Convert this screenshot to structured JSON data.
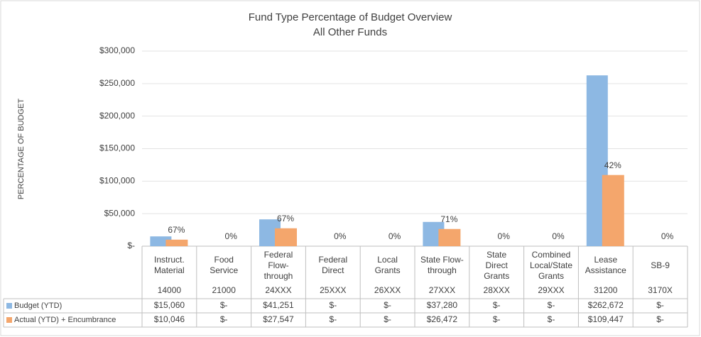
{
  "chart_data": {
    "type": "bar",
    "title": "Fund Type Percentage of Budget Overview",
    "subtitle": "All Other Funds",
    "y_axis_label": "PERCENTAGE OF BUDGET",
    "categories": [
      "Instruct. Material",
      "Food Service",
      "Federal Flow-through",
      "Federal Direct",
      "Local Grants",
      "State Flow-through",
      "State Direct Grants",
      "Combined Local/State Grants",
      "Lease Assistance",
      "SB-9"
    ],
    "codes": [
      "14000",
      "21000",
      "24XXX",
      "25XXX",
      "26XXX",
      "27XXX",
      "28XXX",
      "29XXX",
      "31200",
      "3170X"
    ],
    "series": [
      {
        "name": "Budget (YTD)",
        "color": "#8db8e3",
        "values": [
          15060,
          0,
          41251,
          0,
          0,
          37280,
          0,
          0,
          262672,
          0
        ],
        "value_labels": [
          "$15,060",
          "$-",
          "$41,251",
          "$-",
          "$-",
          "$37,280",
          "$-",
          "$-",
          "$262,672",
          "$-"
        ]
      },
      {
        "name": "Actual (YTD) + Encumbrance",
        "color": "#f4a66c",
        "values": [
          10046,
          0,
          27547,
          0,
          0,
          26472,
          0,
          0,
          109447,
          0
        ],
        "value_labels": [
          "$10,046",
          "$-",
          "$27,547",
          "$-",
          "$-",
          "$26,472",
          "$-",
          "$-",
          "$109,447",
          "$-"
        ]
      }
    ],
    "percent_labels": [
      "67%",
      "0%",
      "67%",
      "0%",
      "0%",
      "71%",
      "0%",
      "0%",
      "42%",
      "0%"
    ],
    "ylim": [
      0,
      300000
    ],
    "yticks": [
      {
        "value": 0,
        "label": "$-"
      },
      {
        "value": 50000,
        "label": "$50,000"
      },
      {
        "value": 100000,
        "label": "$100,000"
      },
      {
        "value": 150000,
        "label": "$150,000"
      },
      {
        "value": 200000,
        "label": "$200,000"
      },
      {
        "value": 250000,
        "label": "$250,000"
      },
      {
        "value": 300000,
        "label": "$300,000"
      }
    ],
    "grid": true
  }
}
